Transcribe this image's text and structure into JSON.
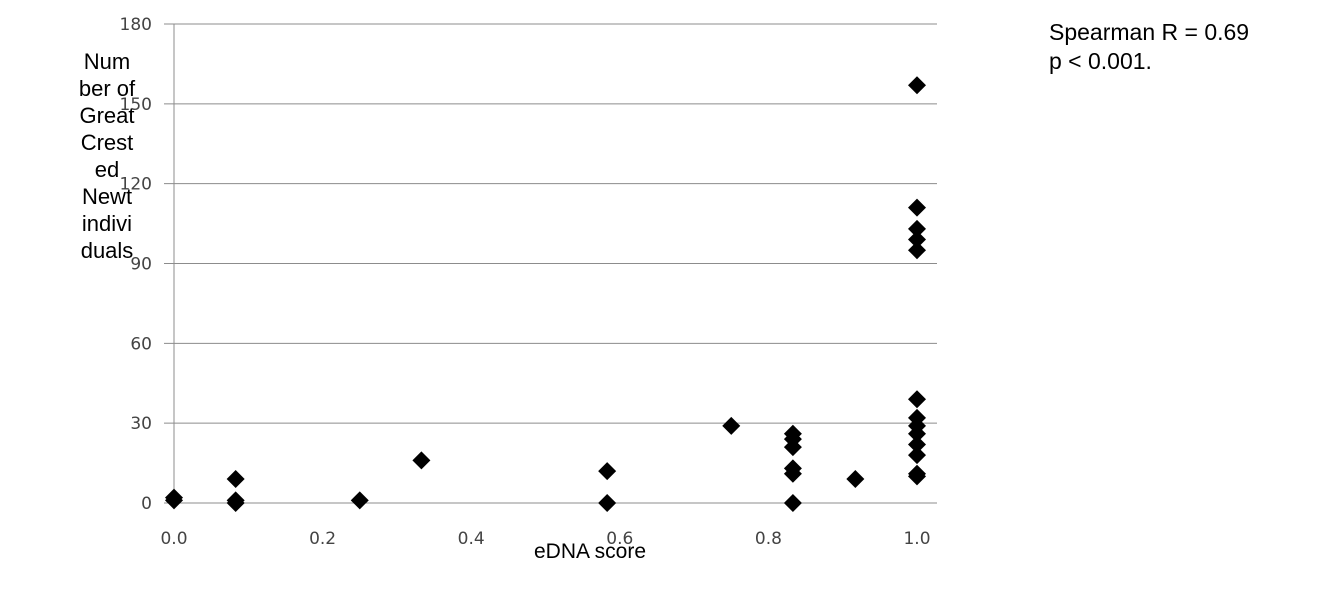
{
  "chart_data": {
    "type": "scatter",
    "title": "",
    "xlabel": "eDNA score",
    "ylabel_lines": [
      "Num",
      "ber of",
      "Great",
      "Crest",
      "ed",
      "Newt",
      "indivi",
      "duals"
    ],
    "xlim": [
      0.0,
      1.0
    ],
    "ylim": [
      0,
      180
    ],
    "xticks": [
      "0.0",
      "0.2",
      "0.4",
      "0.6",
      "0.8",
      "1.0"
    ],
    "yticks": [
      "0",
      "30",
      "60",
      "90",
      "120",
      "150",
      "180"
    ],
    "grid": "horizontal",
    "legend": "none",
    "marker": "diamond",
    "marker_color": "#000000",
    "annotation": [
      "Spearman R = 0.69",
      "p < 0.001."
    ],
    "points": [
      [
        0.0,
        1
      ],
      [
        0.0,
        2
      ],
      [
        0.083,
        0
      ],
      [
        0.083,
        1
      ],
      [
        0.083,
        9
      ],
      [
        0.25,
        1
      ],
      [
        0.333,
        16
      ],
      [
        0.583,
        0
      ],
      [
        0.583,
        12
      ],
      [
        0.75,
        29
      ],
      [
        0.833,
        0
      ],
      [
        0.833,
        11
      ],
      [
        0.833,
        13
      ],
      [
        0.833,
        21
      ],
      [
        0.833,
        24
      ],
      [
        0.833,
        26
      ],
      [
        0.917,
        9
      ],
      [
        1.0,
        10
      ],
      [
        1.0,
        11
      ],
      [
        1.0,
        18
      ],
      [
        1.0,
        22
      ],
      [
        1.0,
        26
      ],
      [
        1.0,
        29
      ],
      [
        1.0,
        32
      ],
      [
        1.0,
        39
      ],
      [
        1.0,
        95
      ],
      [
        1.0,
        99
      ],
      [
        1.0,
        103
      ],
      [
        1.0,
        111
      ],
      [
        1.0,
        157
      ]
    ]
  }
}
